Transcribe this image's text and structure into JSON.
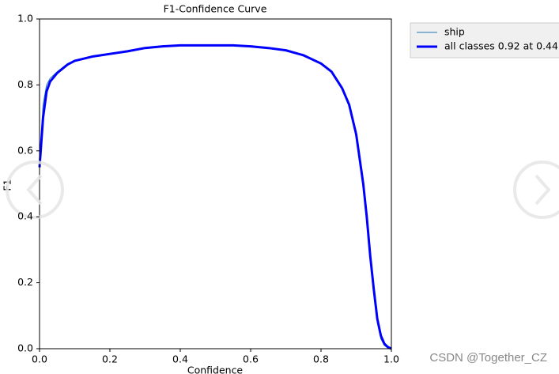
{
  "chart_data": {
    "type": "line",
    "title": "F1-Confidence Curve",
    "x_label": "Confidence",
    "y_label": "F1",
    "x": [
      0,
      0.01,
      0.02,
      0.03,
      0.05,
      0.08,
      0.1,
      0.15,
      0.2,
      0.25,
      0.3,
      0.35,
      0.4,
      0.45,
      0.5,
      0.55,
      0.6,
      0.65,
      0.7,
      0.75,
      0.8,
      0.83,
      0.86,
      0.88,
      0.9,
      0.92,
      0.93,
      0.94,
      0.95,
      0.96,
      0.97,
      0.98,
      0.99,
      1.0
    ],
    "series": [
      {
        "name": "ship",
        "color": "#1f77b4",
        "width": 1,
        "values": [
          0.55,
          0.74,
          0.8,
          0.82,
          0.84,
          0.865,
          0.874,
          0.888,
          0.896,
          0.904,
          0.913,
          0.918,
          0.921,
          0.921,
          0.92,
          0.92,
          0.917,
          0.912,
          0.905,
          0.89,
          0.865,
          0.84,
          0.79,
          0.74,
          0.65,
          0.5,
          0.4,
          0.28,
          0.17,
          0.08,
          0.03,
          0.01,
          0.002,
          0
        ]
      },
      {
        "name": "all classes 0.92 at 0.44",
        "color": "#0000ff",
        "width": 3,
        "values": [
          0.55,
          0.7,
          0.78,
          0.81,
          0.836,
          0.862,
          0.873,
          0.886,
          0.894,
          0.902,
          0.912,
          0.917,
          0.92,
          0.92,
          0.92,
          0.92,
          0.917,
          0.912,
          0.905,
          0.89,
          0.865,
          0.84,
          0.79,
          0.74,
          0.65,
          0.5,
          0.4,
          0.28,
          0.18,
          0.09,
          0.04,
          0.015,
          0.005,
          0
        ]
      }
    ],
    "xlim": [
      0,
      1
    ],
    "ylim": [
      0,
      1
    ],
    "xticks": [
      {
        "value": 0,
        "label": "0.0"
      },
      0.2,
      0.4,
      0.6,
      0.8,
      {
        "value": 1,
        "label": "1.0"
      }
    ],
    "yticks": [
      {
        "value": 0,
        "label": "0.0"
      },
      0.2,
      0.4,
      0.6,
      0.8,
      {
        "value": 1,
        "label": "1.0"
      }
    ],
    "legend": "outside-upper-right"
  },
  "watermark": "CSDN @Together_CZ"
}
